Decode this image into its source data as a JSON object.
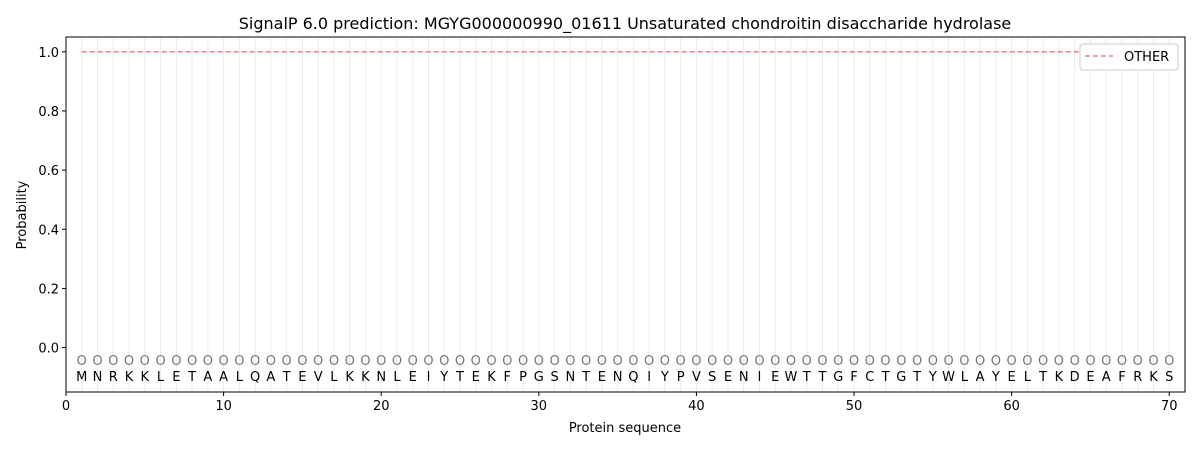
{
  "chart_data": {
    "type": "line",
    "title": "SignalP 6.0 prediction: MGYG000000990_01611 Unsaturated chondroitin disaccharide hydrolase",
    "xlabel": "Protein sequence",
    "ylabel": "Probability",
    "xlim": [
      0,
      71
    ],
    "ylim": [
      -0.15,
      1.05
    ],
    "xticks": [
      0,
      10,
      20,
      30,
      40,
      50,
      60,
      70
    ],
    "yticks": [
      0.0,
      0.2,
      0.4,
      0.6,
      0.8,
      1.0
    ],
    "ytick_labels": [
      "0.0",
      "0.2",
      "0.4",
      "0.6",
      "0.8",
      "1.0"
    ],
    "grid": "vertical at each residue",
    "legend_placement": "top-right",
    "sequence": "MNRKKLETAALQATEVLKKNLEIYTEKFPGSNTENQIYPVSENIEWTTGFCTGTYWLAYELTKDEAFRKS",
    "predicted_labels": "OOOOOOOOOOOOOOOOOOOOOOOOOOOOOOOOOOOOOOOOOOOOOOOOOOOOOOOOOOOOOOOOOOOOOO",
    "series": [
      {
        "name": "OTHER",
        "color": "#f08080",
        "style": "dashed",
        "x_start": 1,
        "x_end": 70,
        "value": 1.0
      }
    ]
  }
}
